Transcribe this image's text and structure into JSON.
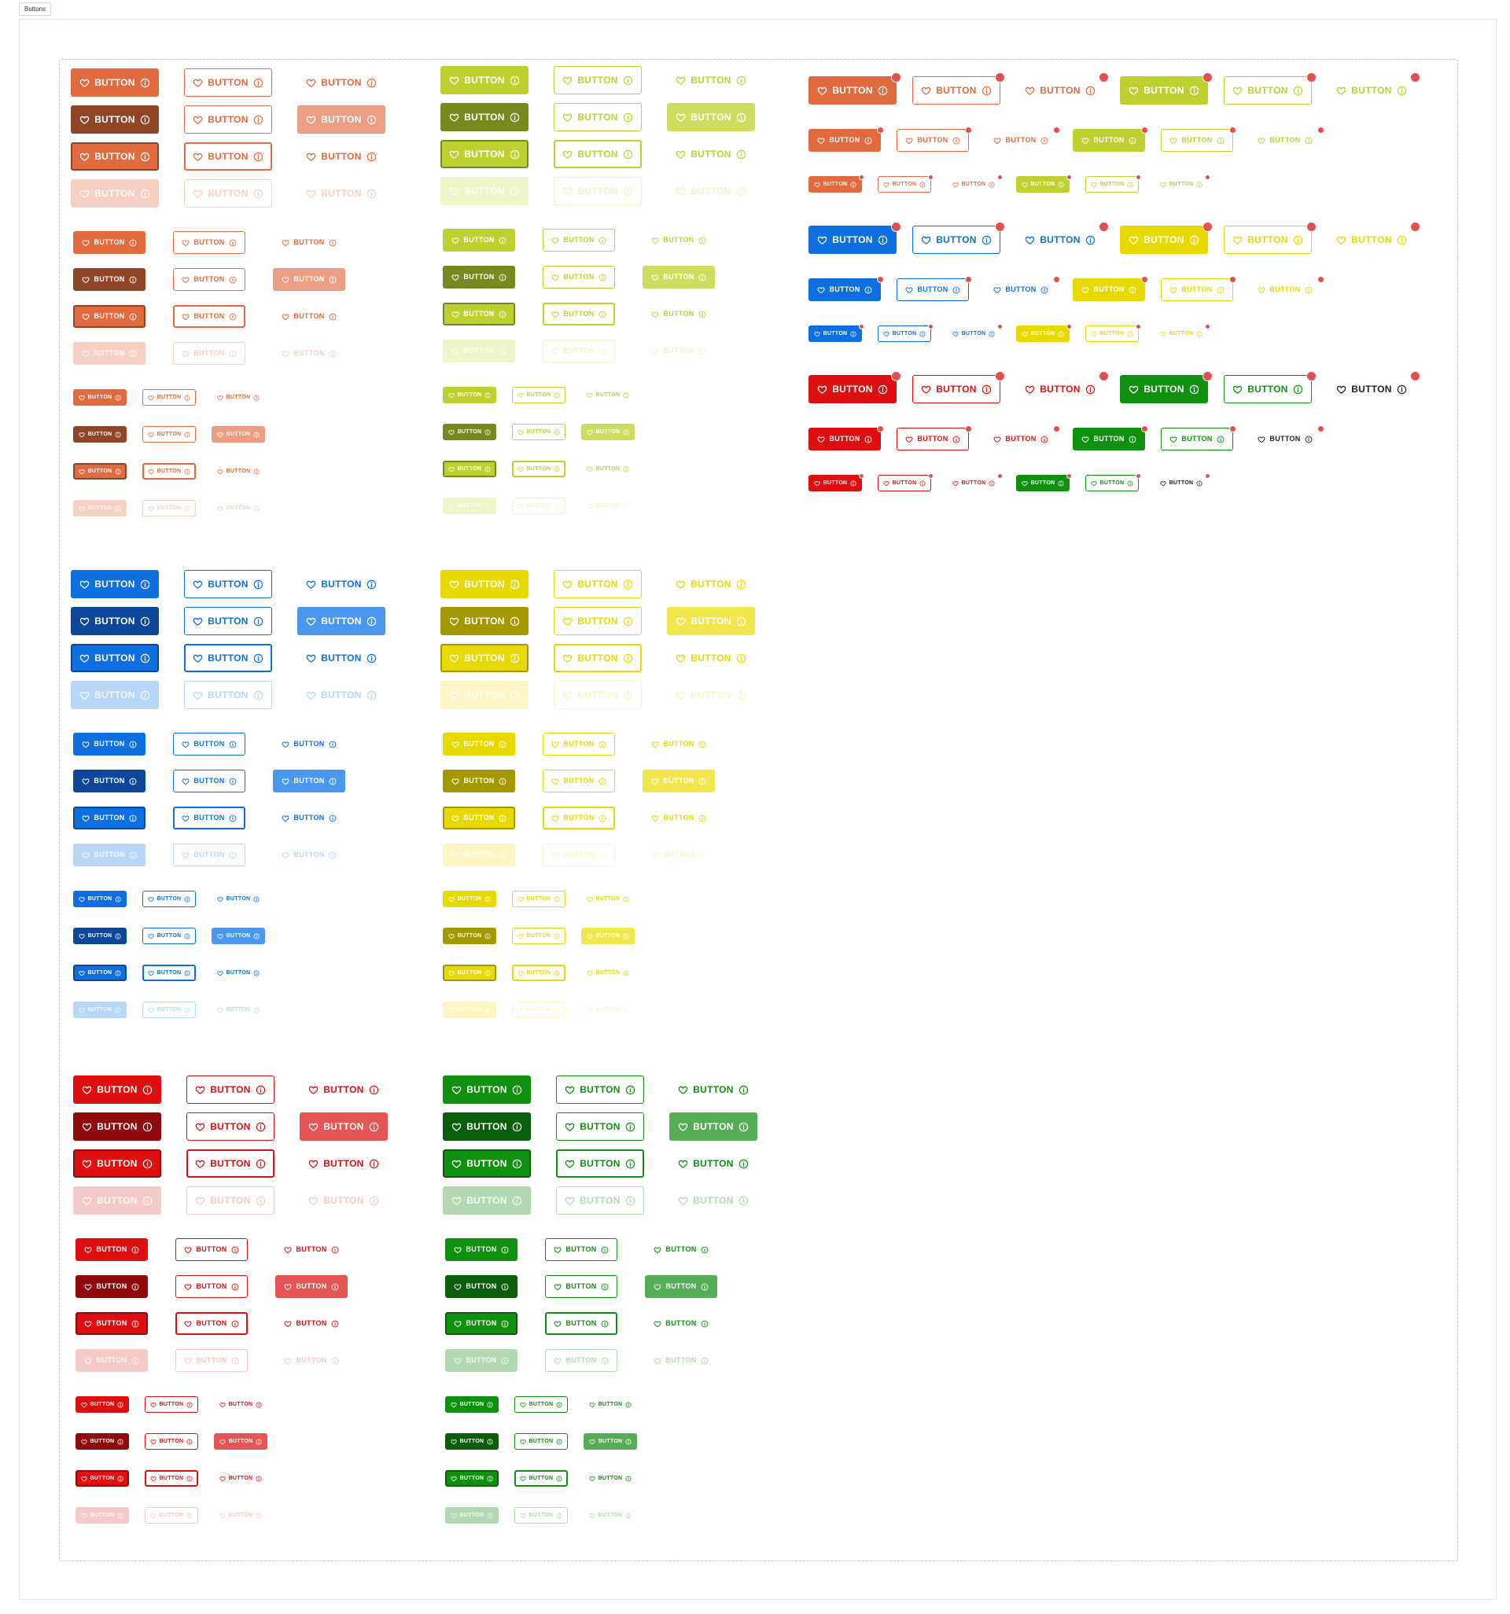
{
  "frame_label": "Buttons",
  "button_label": "BUTTON",
  "icons": {
    "leading": "heart-icon",
    "trailing": "info-circle-icon"
  },
  "colors": {
    "dashed_border": "#f0b3a8",
    "badge_dot": "#e05050"
  },
  "palettes": {
    "orange": {
      "base": "#e26a3f",
      "dark": "#8f4628",
      "light": "#ec9e84",
      "disabled": "#f6d1c3"
    },
    "lime": {
      "base": "#bfd131",
      "dark": "#778a1f",
      "light": "#cfdd5e",
      "disabled": "#eef5c6"
    },
    "blue": {
      "base": "#0d6fe0",
      "dark": "#0e479a",
      "light": "#4b97ee",
      "disabled": "#b7d6f8"
    },
    "yellow": {
      "base": "#e8d900",
      "dark": "#a49800",
      "light": "#f1e64d",
      "disabled": "#fbf6c4"
    },
    "red": {
      "base": "#dd0f10",
      "dark": "#8e0a0b",
      "light": "#e55553",
      "disabled": "#f6c9c9"
    },
    "green": {
      "base": "#0f900f",
      "dark": "#0a5e0a",
      "light": "#55ad55",
      "disabled": "#b2d9b2"
    },
    "black": {
      "base": "#222222",
      "dark": "#111111",
      "light": "#555555",
      "disabled": "#cccccc"
    }
  },
  "states": [
    "default",
    "hover",
    "focused",
    "disabled"
  ],
  "variants": [
    "filled",
    "outlined",
    "text"
  ],
  "sizes": [
    "large",
    "medium",
    "small"
  ],
  "badge_sizes": [
    "large",
    "medium",
    "small"
  ]
}
